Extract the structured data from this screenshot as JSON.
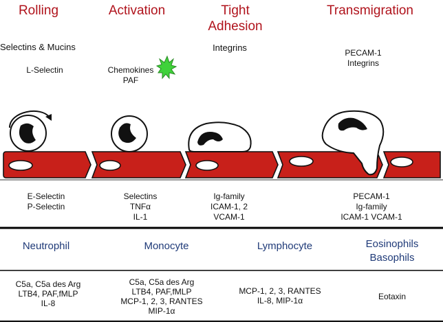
{
  "stages": [
    {
      "id": "rolling",
      "title": "Rolling"
    },
    {
      "id": "activation",
      "title": "Activation"
    },
    {
      "id": "tight",
      "title": "Tight\nAdhesion"
    },
    {
      "id": "transmigration",
      "title": "Transmigration"
    }
  ],
  "leukocyte_molecules": {
    "rolling": [
      "Selectins & Mucins",
      "L-Selectin"
    ],
    "activation": [
      "Chemokines",
      "PAF"
    ],
    "tight": [
      "Integrins"
    ],
    "transmigration": [
      "PECAM-1",
      "Integrins"
    ]
  },
  "endothelial_molecules": {
    "rolling": [
      "E-Selectin",
      "P-Selectin"
    ],
    "activation": [
      "Selectins",
      "TNFα",
      "IL-1"
    ],
    "tight": [
      "Ig-family",
      "ICAM-1, 2",
      "VCAM-1"
    ],
    "transmigration": [
      "PECAM-1",
      "Ig-family",
      "ICAM-1 VCAM-1"
    ]
  },
  "cell_types": [
    "Neutrophil",
    "Monocyte",
    "Lymphocyte",
    "Eosinophils\nBasophils"
  ],
  "chemoattractants": {
    "neutrophil": [
      "C5a, C5a des Arg",
      "LTB4, PAF,fMLP",
      "IL-8"
    ],
    "monocyte": [
      "C5a, C5a des Arg",
      "LTB4, PAF,fMLP",
      "MCP-1, 2, 3, RANTES",
      "MIP-1α"
    ],
    "lymphocyte": [
      "MCP-1, 2, 3, RANTES",
      "IL-8, MIP-1α"
    ],
    "eosinophil": [
      "Eotaxin"
    ]
  },
  "colors": {
    "stage_title": "#b0131c",
    "cell_type": "#1f3a78",
    "endothelium": "#c8201a"
  }
}
